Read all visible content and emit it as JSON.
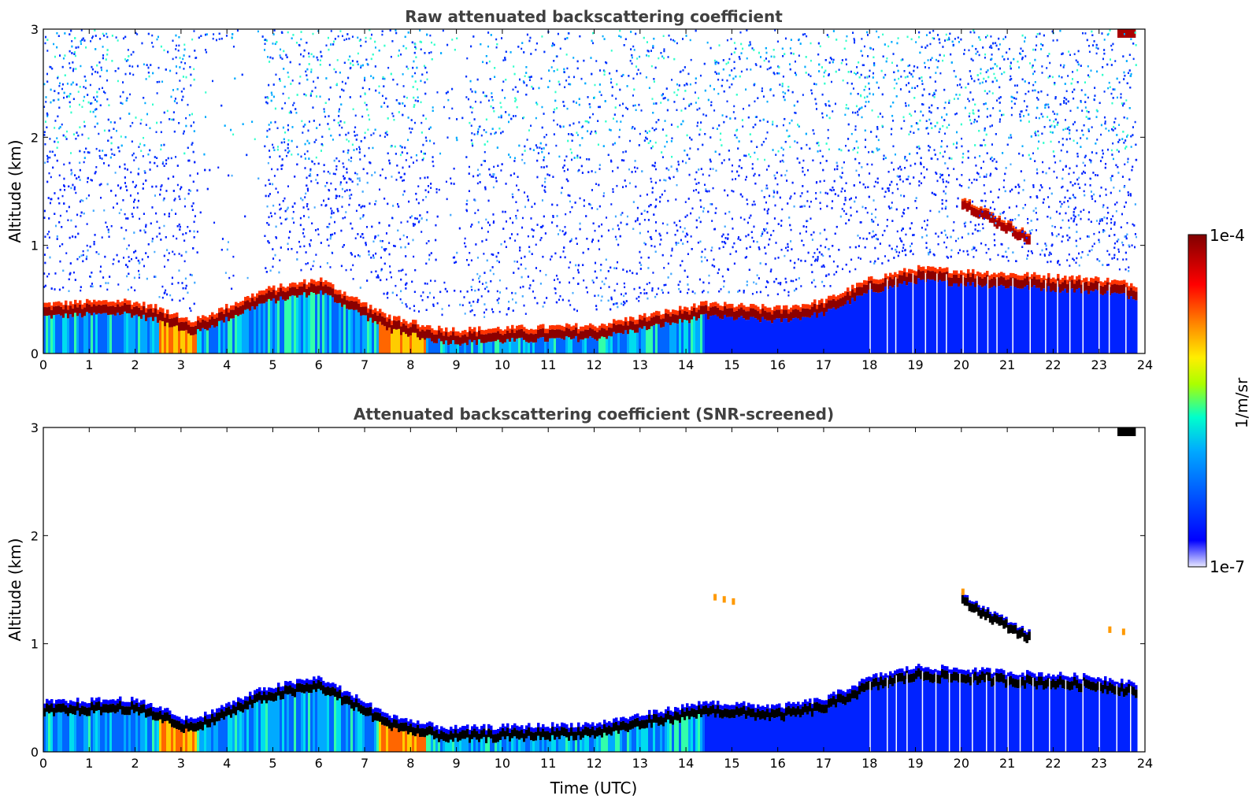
{
  "chart_data": {
    "type": "heatmap",
    "shared": {
      "xlabel": "Time (UTC)",
      "ylabel": "Altitude (km)",
      "xlim": [
        0,
        24
      ],
      "ylim": [
        0,
        3
      ],
      "xticks": [
        "0",
        "1",
        "2",
        "3",
        "4",
        "5",
        "6",
        "7",
        "8",
        "9",
        "10",
        "11",
        "12",
        "13",
        "14",
        "15",
        "16",
        "17",
        "18",
        "19",
        "20",
        "21",
        "22",
        "23",
        "24"
      ],
      "yticks": [
        "0",
        "1",
        "2",
        "3"
      ]
    },
    "panels": [
      {
        "id": "raw",
        "title": "Raw attenuated backscattering coefficient",
        "screened": false
      },
      {
        "id": "screened",
        "title": "Attenuated backscattering coefficient (SNR-screened)",
        "screened": true
      }
    ],
    "colorbar": {
      "label": "1/m/sr",
      "max_label": "1e-4",
      "min_label": "1e-7",
      "scale": "log",
      "colormap": [
        "#e8e8ff",
        "#0000ff",
        "#00aaff",
        "#00ffcc",
        "#aaff00",
        "#ffee00",
        "#ff8800",
        "#ff0000",
        "#800000"
      ]
    },
    "layer": {
      "description_hours": [
        0,
        1.8,
        2.5,
        3.2,
        4.8,
        6,
        7.5,
        8.5,
        9,
        12,
        14.4,
        16,
        17,
        18,
        19,
        21,
        23,
        23.8
      ],
      "top_km": [
        0.42,
        0.45,
        0.38,
        0.25,
        0.55,
        0.65,
        0.3,
        0.2,
        0.18,
        0.22,
        0.42,
        0.38,
        0.45,
        0.65,
        0.75,
        0.7,
        0.65,
        0.6
      ]
    },
    "elevated_layer": {
      "start_hour": 20,
      "end_hour": 21.5,
      "alt_start_km": 1.35,
      "alt_end_km": 1.0
    }
  }
}
